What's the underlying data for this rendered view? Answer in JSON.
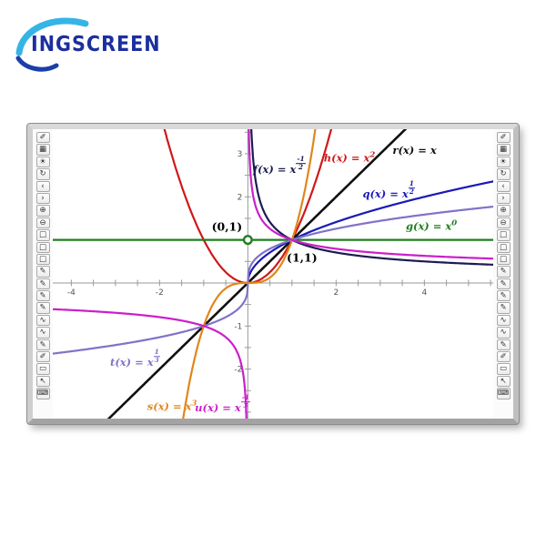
{
  "logo": {
    "text": "INGSCREEN",
    "swoosh_light": "#35b4e6",
    "swoosh_dark": "#1b3fa8",
    "text_color": "#1b2f9e"
  },
  "board": {
    "toolbar_buttons": [
      {
        "name": "annotate-pen-icon",
        "glyph": "✐"
      },
      {
        "name": "dual-page-icon",
        "glyph": "▦"
      },
      {
        "name": "spotlight-icon",
        "glyph": "☀"
      },
      {
        "name": "refresh-icon",
        "glyph": "↻"
      },
      {
        "name": "page-prev-icon",
        "glyph": "‹"
      },
      {
        "name": "page-next-icon",
        "glyph": "›"
      },
      {
        "name": "zoom-in-icon",
        "glyph": "⊕"
      },
      {
        "name": "zoom-out-icon",
        "glyph": "⊖"
      },
      {
        "name": "shape-rect-small-icon",
        "glyph": "□"
      },
      {
        "name": "shape-rect-medium-icon",
        "glyph": "□"
      },
      {
        "name": "shape-rect-large-icon",
        "glyph": "□"
      },
      {
        "name": "crayon-icon",
        "glyph": "✎"
      },
      {
        "name": "pen-fine-icon",
        "glyph": "✎"
      },
      {
        "name": "pen-medium-icon",
        "glyph": "✎"
      },
      {
        "name": "pen-bold-icon",
        "glyph": "✎"
      },
      {
        "name": "curve-tool-icon",
        "glyph": "∿"
      },
      {
        "name": "curve-tool2-icon",
        "glyph": "∿"
      },
      {
        "name": "brush-icon",
        "glyph": "✎"
      },
      {
        "name": "highlighter-icon",
        "glyph": "✐"
      },
      {
        "name": "eraser-icon",
        "glyph": "▭"
      },
      {
        "name": "cursor-icon",
        "glyph": "↖"
      },
      {
        "name": "keyboard-icon",
        "glyph": "⌨"
      }
    ]
  },
  "chart_data": {
    "type": "line",
    "xlim": [
      -4.42,
      5.56
    ],
    "ylim": [
      -3.15,
      3.57
    ],
    "tick_step": 0.5,
    "x_tick_labels": [
      -4,
      -2,
      2,
      4
    ],
    "y_tick_labels": [
      3,
      2,
      -1,
      -2
    ],
    "axis_color": "#9a9a9a",
    "tick_label_color": "#555555",
    "grid": false,
    "series": [
      {
        "name": "f",
        "expr": "x^(-1/2)",
        "p": -0.5,
        "odd": false,
        "domains": [
          [
            0.004,
            5.56
          ]
        ],
        "color": "#1c1c52",
        "width": 2.2
      },
      {
        "name": "h",
        "expr": "x^2",
        "p": 2,
        "odd": false,
        "domains": [
          [
            -4.42,
            5.56
          ]
        ],
        "color": "#d01818",
        "width": 2.2
      },
      {
        "name": "r",
        "expr": "x",
        "p": 1,
        "odd": false,
        "domains": [
          [
            -4.42,
            5.56
          ]
        ],
        "color": "#101010",
        "width": 2.6
      },
      {
        "name": "q",
        "expr": "x^(1/2)",
        "p": 0.5,
        "odd": false,
        "domains": [
          [
            0,
            5.56
          ]
        ],
        "color": "#1a1ab8",
        "width": 2.2
      },
      {
        "name": "g",
        "expr": "x^0",
        "p": 0,
        "odd": false,
        "domains": [
          [
            -4.42,
            5.56
          ]
        ],
        "color": "#1e7e1e",
        "width": 2.2
      },
      {
        "name": "t",
        "expr": "x^(1/3)",
        "p": 0.33333333,
        "odd": true,
        "domains": [
          [
            -4.42,
            5.56
          ]
        ],
        "color": "#8172c8",
        "width": 2.2
      },
      {
        "name": "s",
        "expr": "x^3",
        "p": 3,
        "odd": false,
        "domains": [
          [
            -4.42,
            5.56
          ]
        ],
        "color": "#e0861c",
        "width": 2.2
      },
      {
        "name": "u",
        "expr": "x^(-1/3)",
        "p": -0.33333333,
        "odd": true,
        "domains": [
          [
            -4.42,
            -0.004
          ],
          [
            0.004,
            5.56
          ]
        ],
        "color": "#cb1fcb",
        "width": 2.2
      }
    ],
    "open_point": {
      "x": 0,
      "y": 1,
      "color": "#1e7e1e"
    },
    "curve_labels": [
      {
        "fn": "f",
        "base": "x",
        "exp_num": "-1",
        "exp_den": "2",
        "color": "#1c1c52",
        "x": 0.12,
        "y": 2.72
      },
      {
        "fn": "h",
        "base": "x",
        "exp": "2",
        "color": "#d01818",
        "x": 1.72,
        "y": 2.92
      },
      {
        "fn": "r",
        "base": "x",
        "color": "#101010",
        "x": 3.28,
        "y": 3.08
      },
      {
        "fn": "q",
        "base": "x",
        "exp_num": "1",
        "exp_den": "2",
        "color": "#1a1ab8",
        "x": 2.6,
        "y": 2.15
      },
      {
        "fn": "g",
        "base": "x",
        "exp": "0",
        "color": "#1e7e1e",
        "x": 3.58,
        "y": 1.32
      },
      {
        "fn": "t",
        "base": "x",
        "exp_num": "1",
        "exp_den": "3",
        "color": "#8172c8",
        "x": -3.12,
        "y": -1.75
      },
      {
        "fn": "s",
        "base": "x",
        "exp": "3",
        "color": "#e0861c",
        "x": -2.28,
        "y": -2.85
      },
      {
        "fn": "u",
        "base": "x",
        "exp_num": "-1",
        "exp_den": "3",
        "color": "#cb1fcb",
        "x": -1.2,
        "y": -2.82
      }
    ],
    "annotations": [
      {
        "text": "(0,1)",
        "x": -0.82,
        "y": 1.3
      },
      {
        "text": "(1,1)",
        "x": 0.88,
        "y": 0.6
      }
    ]
  }
}
